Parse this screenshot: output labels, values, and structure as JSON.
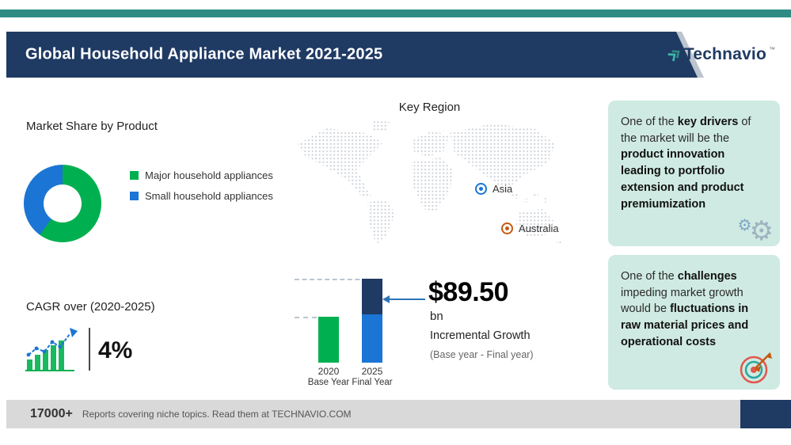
{
  "colors": {
    "teal": "#2E8C85",
    "navy": "#1F3A63",
    "green": "#00B050",
    "blue": "#1B75D4",
    "orange": "#C55A11",
    "mint": "#CFEAE2",
    "footer_gray": "#D9D9D9"
  },
  "header": {
    "title": "Global Household Appliance Market 2021-2025",
    "logo": {
      "text": "Technavio",
      "tm": "™"
    }
  },
  "market_share": {
    "title": "Market Share by Product",
    "legend": [
      {
        "label": "Major household appliances",
        "color": "#00B050"
      },
      {
        "label": "Small household appliances",
        "color": "#1B75D4"
      }
    ]
  },
  "cagr": {
    "label": "CAGR over (2020-2025)",
    "value": "4%"
  },
  "key_region": {
    "title": "Key Region",
    "markers": [
      {
        "label": "Asia",
        "color": "#1B75D4"
      },
      {
        "label": "Australia",
        "color": "#C55A11"
      }
    ]
  },
  "growth": {
    "value": "$89.50",
    "unit": "bn",
    "label": "Incremental Growth",
    "sublabel": "(Base year - Final year)",
    "bars": [
      {
        "year": "2020",
        "caption": "Base Year"
      },
      {
        "year": "2025",
        "caption": "Final Year"
      }
    ]
  },
  "insights": [
    {
      "icon": "gears-icon",
      "segments": [
        {
          "text": "One of the ",
          "bold": false
        },
        {
          "text": "key drivers",
          "bold": true
        },
        {
          "text": " of the market will be the ",
          "bold": false
        },
        {
          "text": "product innovation leading to portfolio extension and product premiumization",
          "bold": true
        }
      ]
    },
    {
      "icon": "target-icon",
      "segments": [
        {
          "text": "One of the ",
          "bold": false
        },
        {
          "text": "challenges",
          "bold": true
        },
        {
          "text": " impeding market growth would be ",
          "bold": false
        },
        {
          "text": "fluctuations in raw material prices and operational costs",
          "bold": true
        }
      ]
    }
  ],
  "footer": {
    "stat": "17000+",
    "text": "Reports covering niche topics. Read them at TECHNAVIO.COM"
  },
  "chart_data": [
    {
      "type": "pie",
      "donut": true,
      "title": "Market Share by Product",
      "labels": [
        "Major household appliances",
        "Small household appliances"
      ],
      "values": [
        60,
        40
      ],
      "value_note": "percent shares estimated from donut arc proportions; numeric labels not shown on chart",
      "colors": [
        "#00B050",
        "#1B75D4"
      ],
      "legend_position": "right"
    },
    {
      "type": "bar",
      "title": "Incremental Growth",
      "categories": [
        "2020",
        "2025"
      ],
      "category_captions": [
        "Base Year",
        "Final Year"
      ],
      "values_relative": [
        0.55,
        1.0
      ],
      "stack_2025": {
        "base_relative": 0.575,
        "increment_relative": 0.425
      },
      "colors": {
        "2020": "#00B050",
        "2025_base": "#1B75D4",
        "2025_increment": "#1F3A63"
      },
      "annotation": {
        "value": "$89.50",
        "unit": "bn",
        "label": "Incremental Growth",
        "sublabel": "(Base year - Final year)"
      },
      "note": "axis values not labeled; heights are relative proportions read from the image"
    }
  ]
}
